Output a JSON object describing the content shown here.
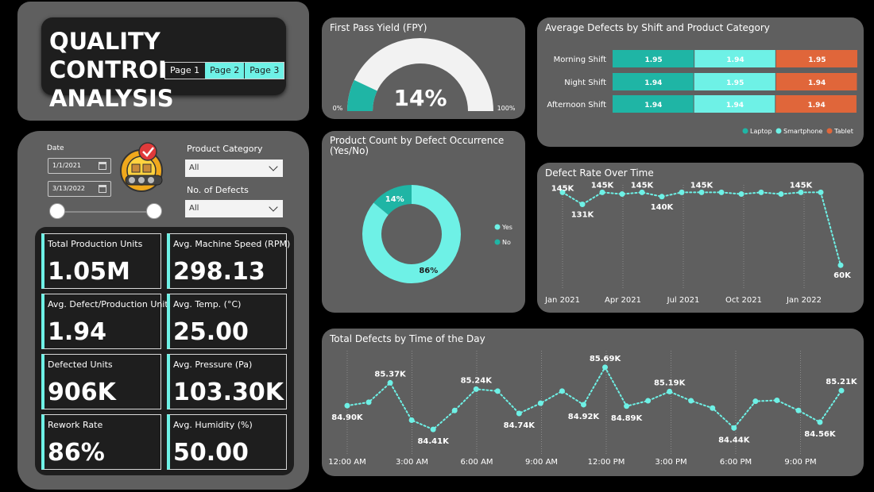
{
  "app": {
    "title_line1": "QUALITY CONTROL",
    "title_line2": "ANALYSIS",
    "pages": [
      "Page 1",
      "Page 2",
      "Page 3"
    ],
    "active_pages": [
      1,
      2
    ]
  },
  "filters": {
    "date_label": "Date",
    "date_from": "1/1/2021",
    "date_to": "3/13/2022",
    "product_category_label": "Product Category",
    "product_category_value": "All",
    "defects_label": "No. of Defects",
    "defects_value": "All"
  },
  "kpis": [
    {
      "label": "Total Production Units",
      "value": "1.05M"
    },
    {
      "label": "Avg. Machine Speed (RPM)",
      "value": "298.13"
    },
    {
      "label": "Avg. Defect/Production Unit",
      "value": "1.94"
    },
    {
      "label": "Avg. Temp. (°C)",
      "value": "25.00"
    },
    {
      "label": "Defected Units",
      "value": "906K"
    },
    {
      "label": "Avg. Pressure (Pa)",
      "value": "103.30K"
    },
    {
      "label": "Rework Rate",
      "value": "86%"
    },
    {
      "label": "Avg. Humidity (%)",
      "value": "50.00"
    }
  ],
  "colors": {
    "accent": "#6ef1e6",
    "teal": "#1fb5a5",
    "orange": "#e0663a",
    "panel": "#5f5f5f",
    "dark": "#1e1e1e"
  },
  "chart_data": [
    {
      "id": "fpy",
      "type": "gauge",
      "title": "First Pass Yield (FPY)",
      "value": 14,
      "value_label": "14%",
      "min_label": "0%",
      "max_label": "100%"
    },
    {
      "id": "shift",
      "type": "bar",
      "stacked": true,
      "orientation": "horizontal",
      "title": "Average Defects by Shift and Product Category",
      "categories": [
        "Morning Shift",
        "Night Shift",
        "Afternoon Shift"
      ],
      "series": [
        {
          "name": "Laptop",
          "values": [
            1.95,
            1.94,
            1.94
          ],
          "labels": [
            "1.95",
            "1.94",
            "1.94"
          ],
          "color": "#1fb5a5"
        },
        {
          "name": "Smartphone",
          "values": [
            1.94,
            1.95,
            1.94
          ],
          "labels": [
            "1.94",
            "1.95",
            "1.94"
          ],
          "color": "#6ef1e6"
        },
        {
          "name": "Tablet",
          "values": [
            1.95,
            1.94,
            1.94
          ],
          "labels": [
            "1.95",
            "1.94",
            "1.94"
          ],
          "color": "#e0663a"
        }
      ],
      "legend": "bottom-right"
    },
    {
      "id": "donut",
      "type": "pie",
      "donut": true,
      "title_line1": "Product Count by Defect Occurrence",
      "title_line2": "(Yes/No)",
      "slices": [
        {
          "name": "Yes",
          "value": 86,
          "label": "86%",
          "color": "#6ef1e6"
        },
        {
          "name": "No",
          "value": 14,
          "label": "14%",
          "color": "#1fb5a5"
        }
      ],
      "legend": "right"
    },
    {
      "id": "rate",
      "type": "line",
      "title": "Defect Rate Over Time",
      "x_ticks": [
        "Jan 2021",
        "Apr 2021",
        "Jul 2021",
        "Oct 2021",
        "Jan 2022"
      ],
      "x": [
        0,
        1,
        2,
        3,
        4,
        5,
        6,
        7,
        8,
        9,
        10,
        11,
        12,
        13,
        14
      ],
      "values": [
        145,
        131,
        145,
        143,
        145,
        140,
        145,
        145,
        145,
        143,
        145,
        143,
        145,
        145,
        60
      ],
      "point_labels": [
        "145K",
        "131K",
        "145K",
        "",
        "145K",
        "140K",
        "",
        "145K",
        "",
        "",
        "",
        "",
        "145K",
        "",
        "60K"
      ],
      "ylim": [
        50,
        150
      ]
    },
    {
      "id": "tod",
      "type": "line",
      "title": "Total Defects by Time of the Day",
      "x_ticks": [
        "12:00 AM",
        "3:00 AM",
        "6:00 AM",
        "9:00 AM",
        "12:00 PM",
        "3:00 PM",
        "6:00 PM",
        "9:00 PM"
      ],
      "x": [
        0,
        1,
        2,
        3,
        4,
        5,
        6,
        7,
        8,
        9,
        10,
        11,
        12,
        13,
        14,
        15,
        16,
        17,
        18,
        19,
        20,
        21,
        22,
        23
      ],
      "values": [
        84.9,
        84.97,
        85.37,
        84.6,
        84.41,
        84.8,
        85.24,
        85.2,
        84.74,
        84.95,
        85.2,
        84.92,
        85.69,
        84.89,
        85.0,
        85.19,
        85.0,
        84.85,
        84.44,
        84.99,
        85.01,
        84.8,
        84.56,
        85.21
      ],
      "point_labels": [
        "84.90K",
        "",
        "85.37K",
        "",
        "84.41K",
        "",
        "85.24K",
        "",
        "84.74K",
        "",
        "",
        "84.92K",
        "85.69K",
        "84.89K",
        "",
        "85.19K",
        "",
        "",
        "84.44K",
        "",
        "",
        "",
        "84.56K",
        "85.21K"
      ],
      "ylim": [
        84.2,
        85.9
      ]
    }
  ]
}
